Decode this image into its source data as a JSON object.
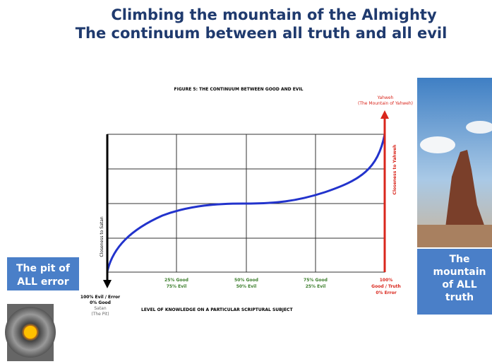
{
  "header": {
    "title_lines": [
      "Climbing the mountain of the Almighty",
      "The continuum between all truth and all evil"
    ]
  },
  "figure": {
    "title": "FIGURE 5: THE CONTINUUM BETWEEN GOOD AND EVIL",
    "top_label": [
      "Yahweh",
      "(The Mountain of Yahweh)"
    ],
    "right_axis": "Closeness to Yahweh",
    "left_axis": "Closeness to Satan",
    "x_axis_label": "LEVEL OF KNOWLEDGE ON A PARTICULAR SCRIPTURAL SUBJECT",
    "left_end": [
      "100% Evil / Error",
      "0% Good",
      "Satan",
      "(The Pit)"
    ],
    "steps": [
      [
        "25% Good",
        "75% Evil"
      ],
      [
        "50% Good",
        "50% Evil"
      ],
      [
        "75% Good",
        "25% Evil"
      ]
    ],
    "right_end": [
      "100%",
      "Good / Truth",
      "0% Error"
    ]
  },
  "boxes": {
    "pit": [
      "The pit of",
      "ALL error"
    ],
    "mountain": [
      "The",
      "mountain",
      "of ALL",
      "truth"
    ]
  }
}
